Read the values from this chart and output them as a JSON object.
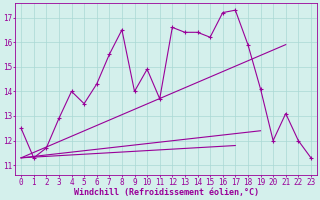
{
  "xlabel": "Windchill (Refroidissement éolien,°C)",
  "bg_color": "#d4f0ec",
  "line_color": "#990099",
  "grid_color": "#aad8d4",
  "x_values": [
    0,
    1,
    2,
    3,
    4,
    5,
    6,
    7,
    8,
    9,
    10,
    11,
    12,
    13,
    14,
    15,
    16,
    17,
    18,
    19,
    20,
    21,
    22,
    23
  ],
  "series1": [
    12.5,
    11.3,
    11.7,
    12.9,
    14.0,
    13.5,
    14.3,
    15.5,
    16.5,
    14.0,
    14.9,
    13.7,
    16.6,
    16.4,
    16.4,
    16.2,
    17.2,
    17.3,
    15.9,
    14.1,
    12.0,
    13.1,
    12.0,
    11.3
  ],
  "series2_x": [
    0,
    21
  ],
  "series2_y": [
    11.3,
    15.9
  ],
  "series3_x": [
    0,
    19
  ],
  "series3_y": [
    11.3,
    12.4
  ],
  "series4_x": [
    0,
    17
  ],
  "series4_y": [
    11.3,
    11.8
  ],
  "ylim": [
    10.6,
    17.6
  ],
  "xlim": [
    -0.5,
    23.5
  ],
  "yticks": [
    11,
    12,
    13,
    14,
    15,
    16,
    17
  ],
  "xticks": [
    0,
    1,
    2,
    3,
    4,
    5,
    6,
    7,
    8,
    9,
    10,
    11,
    12,
    13,
    14,
    15,
    16,
    17,
    18,
    19,
    20,
    21,
    22,
    23
  ],
  "tick_fontsize": 5.5,
  "xlabel_fontsize": 6.0
}
